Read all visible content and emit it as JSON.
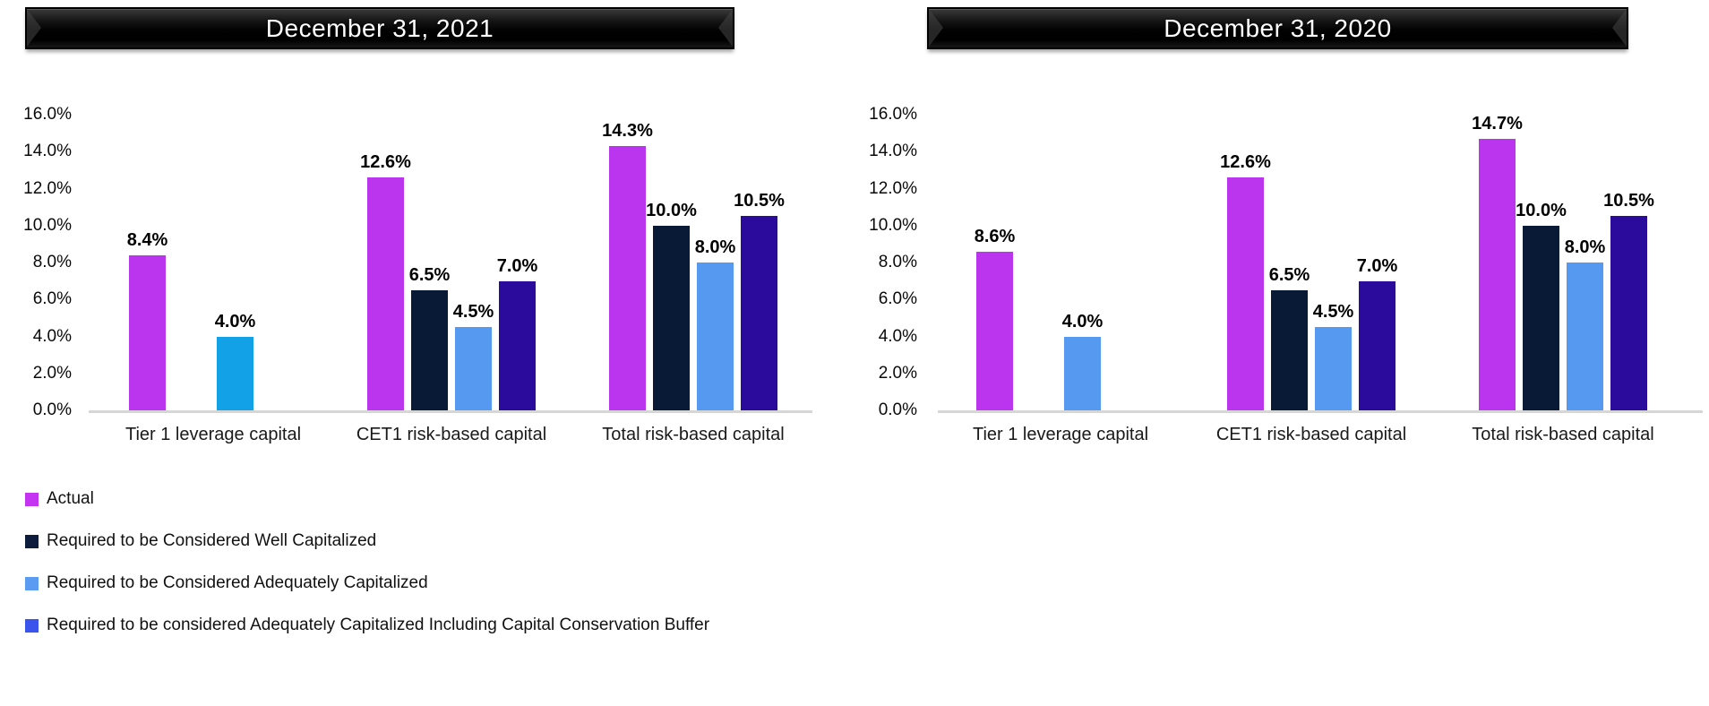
{
  "chart_data": [
    {
      "type": "bar",
      "title": "December 31, 2021",
      "categories": [
        "Tier 1 leverage capital",
        "CET1 risk-based capital",
        "Total risk-based capital"
      ],
      "series": [
        {
          "name": "Actual",
          "color": "#BB35EE",
          "values": [
            8.4,
            12.6,
            14.3
          ]
        },
        {
          "name": "Required to be Considered Well Capitalized",
          "color": "#081A36",
          "values": [
            null,
            6.5,
            10.0
          ]
        },
        {
          "name": "Required to be Considered Adequately Capitalized",
          "color": "#5599F0",
          "values": [
            4.0,
            4.5,
            8.0
          ],
          "point_colors": [
            "#12A0E6",
            "#5599F0",
            "#5599F0"
          ]
        },
        {
          "name": "Required to be considered Adequately Capitalized Including Capital Conservation Buffer",
          "color": "#2A0B9B",
          "values": [
            null,
            7.0,
            10.5
          ]
        }
      ],
      "ylim": [
        0,
        16
      ],
      "ytick_step": 2,
      "ytick_format": "percent-one-decimal",
      "data_label_format": "percent-one-decimal",
      "grid": false,
      "legend_position": "bottom-left"
    },
    {
      "type": "bar",
      "title": "December 31, 2020",
      "categories": [
        "Tier 1 leverage capital",
        "CET1 risk-based capital",
        "Total risk-based capital"
      ],
      "series": [
        {
          "name": "Actual",
          "color": "#BB35EE",
          "values": [
            8.6,
            12.6,
            14.7
          ]
        },
        {
          "name": "Required to be Considered Well Capitalized",
          "color": "#081A36",
          "values": [
            null,
            6.5,
            10.0
          ]
        },
        {
          "name": "Required to be Considered Adequately Capitalized",
          "color": "#5599F0",
          "values": [
            4.0,
            4.5,
            8.0
          ]
        },
        {
          "name": "Required to be considered Adequately Capitalized Including Capital Conservation Buffer",
          "color": "#2A0B9B",
          "values": [
            null,
            7.0,
            10.5
          ]
        }
      ],
      "ylim": [
        0,
        16
      ],
      "ytick_step": 2,
      "ytick_format": "percent-one-decimal",
      "data_label_format": "percent-one-decimal",
      "grid": false,
      "legend_position": "none"
    }
  ],
  "legend": {
    "items": [
      {
        "label": "Actual",
        "color": "#C333F0"
      },
      {
        "label": "Required to be Considered Well Capitalized",
        "color": "#0D1C3D"
      },
      {
        "label": "Required to be Considered Adequately Capitalized",
        "color": "#5B9BF2"
      },
      {
        "label": "Required to be considered Adequately Capitalized Including Capital Conservation Buffer",
        "color": "#3B55EC"
      }
    ]
  },
  "colors": {
    "axis_line": "#d6d6d6",
    "banner_background": "#000000",
    "banner_text": "#ffffff"
  }
}
